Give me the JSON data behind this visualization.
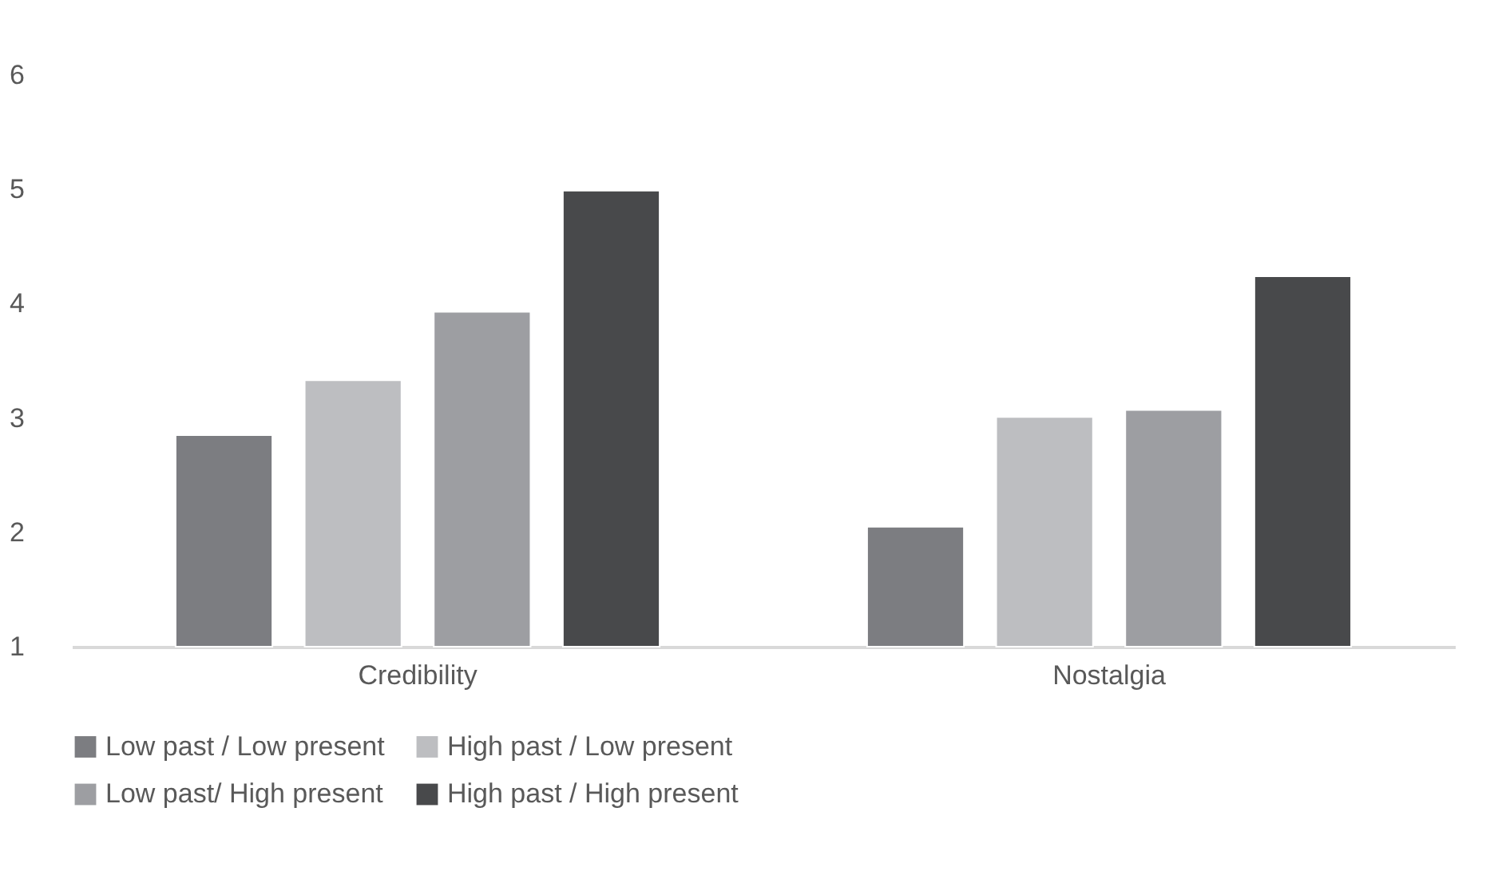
{
  "chart_data": {
    "type": "bar",
    "categories": [
      "Credibility",
      "Nostalgia"
    ],
    "series": [
      {
        "name": "Low past / Low present",
        "color": "#7c7d81",
        "values": [
          2.85,
          2.05
        ]
      },
      {
        "name": "High past / Low present",
        "color": "#bdbec1",
        "values": [
          3.33,
          3.01
        ]
      },
      {
        "name": "Low past/ High present",
        "color": "#9d9ea2",
        "values": [
          3.93,
          3.07
        ]
      },
      {
        "name": "High past / High present",
        "color": "#48494b",
        "values": [
          4.99,
          4.24
        ]
      }
    ],
    "ylim": [
      1,
      6
    ],
    "yticks": [
      1,
      2,
      3,
      4,
      5,
      6
    ],
    "grid": false,
    "legend": "bottom"
  }
}
